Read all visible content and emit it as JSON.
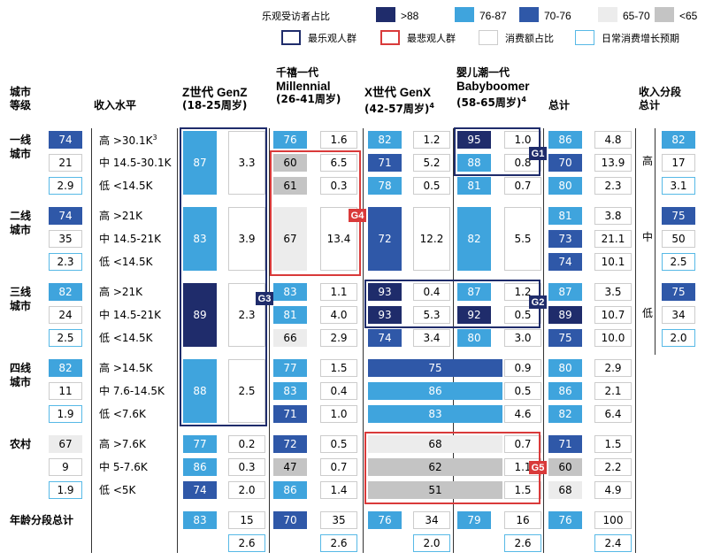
{
  "legend": {
    "color_title": "乐观受访者占比",
    "colors": [
      {
        "label": ">88",
        "color": "#1f2c6b"
      },
      {
        "label": "76-87",
        "color": "#3fa4dd"
      },
      {
        "label": "70-76",
        "color": "#2f58a8"
      },
      {
        "label": "65-70",
        "color": "#ececec"
      },
      {
        "label": "<65",
        "color": "#c4c4c4"
      }
    ],
    "outlines": [
      {
        "label": "最乐观人群",
        "color": "#1f2c6b",
        "style": "bold"
      },
      {
        "label": "最悲观人群",
        "color": "#d93a3a",
        "style": "bold"
      },
      {
        "label": "消费额占比",
        "color": "#cccccc",
        "style": "thin"
      },
      {
        "label": "日常消费增长预期",
        "color": "#57b9e6",
        "style": "thin"
      }
    ]
  },
  "headers": {
    "city_tier": "城市\n等级",
    "income": "收入水平",
    "genz_cn": "Z世代 GenZ",
    "genz_age": "(18-25周岁)",
    "mil_cn": "千禧一代",
    "mil_en": "Millennial",
    "mil_age": "(26-41周岁)",
    "genx_cn": "X世代 GenX",
    "genx_age": "(42-57周岁)",
    "genx_sup": "4",
    "boom_cn": "婴儿潮一代",
    "boom_en": "Babyboomer",
    "boom_age": "(58-65周岁)",
    "boom_sup": "4",
    "total": "总计",
    "income_total": "收入分段\n总计"
  },
  "chart_data": {
    "type": "table",
    "tiers": [
      {
        "name": "一线\n城市",
        "rows": [
          {
            "share": "74",
            "income": "高 >30.1K",
            "income_sup": "3",
            "tot": "86",
            "tot_w": "4.8"
          },
          {
            "share": "21",
            "income": "中 14.5-30.1K",
            "tot": "70",
            "tot_w": "13.9"
          },
          {
            "share": "2.9",
            "income": "低 <14.5K",
            "tot": "80",
            "tot_w": "2.3"
          }
        ],
        "genz": {
          "v": "87",
          "w": "3.3"
        },
        "mil": [
          {
            "v": "76",
            "w": "1.6"
          },
          {
            "v": "60",
            "w": "6.5"
          },
          {
            "v": "61",
            "w": "0.3"
          }
        ],
        "genx": [
          {
            "v": "82",
            "w": "1.2"
          },
          {
            "v": "71",
            "w": "5.2"
          },
          {
            "v": "78",
            "w": "0.5"
          }
        ],
        "boom": [
          {
            "v": "95",
            "w": "1.0"
          },
          {
            "v": "88",
            "w": "0.8"
          },
          {
            "v": "81",
            "w": "0.7"
          }
        ]
      },
      {
        "name": "二线\n城市",
        "rows": [
          {
            "share": "74",
            "income": "高 >21K",
            "tot": "81",
            "tot_w": "3.8"
          },
          {
            "share": "35",
            "income": "中 14.5-21K",
            "tot": "73",
            "tot_w": "21.1"
          },
          {
            "share": "2.3",
            "income": "低 <14.5K",
            "tot": "74",
            "tot_w": "10.1"
          }
        ],
        "genz": {
          "v": "83",
          "w": "3.9"
        },
        "mil": {
          "v": "67",
          "w": "13.4"
        },
        "genx": {
          "v": "72",
          "w": "12.2"
        },
        "boom": {
          "v": "82",
          "w": "5.5"
        }
      },
      {
        "name": "三线\n城市",
        "rows": [
          {
            "share": "82",
            "income": "高 >21K",
            "tot": "87",
            "tot_w": "3.5"
          },
          {
            "share": "24",
            "income": "中 14.5-21K",
            "tot": "89",
            "tot_w": "10.7"
          },
          {
            "share": "2.5",
            "income": "低 <14.5K",
            "tot": "75",
            "tot_w": "10.0"
          }
        ],
        "genz": {
          "v": "89",
          "w": "2.3"
        },
        "mil": [
          {
            "v": "83",
            "w": "1.1"
          },
          {
            "v": "81",
            "w": "4.0"
          },
          {
            "v": "66",
            "w": "2.9"
          }
        ],
        "genx": [
          {
            "v": "93",
            "w": "0.4"
          },
          {
            "v": "93",
            "w": "5.3"
          },
          {
            "v": "74",
            "w": "3.4"
          }
        ],
        "boom": [
          {
            "v": "87",
            "w": "1.2"
          },
          {
            "v": "92",
            "w": "0.5"
          },
          {
            "v": "80",
            "w": "3.0"
          }
        ]
      },
      {
        "name": "四线\n城市",
        "rows": [
          {
            "share": "82",
            "income": "高 >14.5K",
            "tot": "80",
            "tot_w": "2.9"
          },
          {
            "share": "11",
            "income": "中 7.6-14.5K",
            "tot": "86",
            "tot_w": "2.1"
          },
          {
            "share": "1.9",
            "income": "低 <7.6K",
            "tot": "82",
            "tot_w": "6.4"
          }
        ],
        "genz": {
          "v": "88",
          "w": "2.5"
        },
        "mil": [
          {
            "v": "77",
            "w": "1.5"
          },
          {
            "v": "83",
            "w": "0.4"
          },
          {
            "v": "71",
            "w": "1.0"
          }
        ],
        "genxboom": [
          {
            "v": "75",
            "w": "0.9"
          },
          {
            "v": "86",
            "w": "0.5"
          },
          {
            "v": "83",
            "w": "4.6"
          }
        ]
      },
      {
        "name": "农村",
        "rows": [
          {
            "share": "67",
            "income": "高 >7.6K",
            "tot": "71",
            "tot_w": "1.5"
          },
          {
            "share": "9",
            "income": "中 5-7.6K",
            "tot": "60",
            "tot_w": "2.2"
          },
          {
            "share": "1.9",
            "income": "低 <5K",
            "tot": "68",
            "tot_w": "4.9"
          }
        ],
        "genz": [
          {
            "v": "77",
            "w": "0.2"
          },
          {
            "v": "86",
            "w": "0.3"
          },
          {
            "v": "74",
            "w": "2.0"
          }
        ],
        "mil": [
          {
            "v": "72",
            "w": "0.5"
          },
          {
            "v": "47",
            "w": "0.7"
          },
          {
            "v": "86",
            "w": "1.4"
          }
        ],
        "genxboom": [
          {
            "v": "68",
            "w": "0.7"
          },
          {
            "v": "62",
            "w": "1.1"
          },
          {
            "v": "51",
            "w": "1.5"
          }
        ]
      }
    ],
    "age_total": {
      "label": "年龄分段总计",
      "genz": {
        "v": "83",
        "w": "15",
        "g": "2.6"
      },
      "mil": {
        "v": "70",
        "w": "35",
        "g": "2.6"
      },
      "genx": {
        "v": "76",
        "w": "34",
        "g": "2.0"
      },
      "boom": {
        "v": "79",
        "w": "16",
        "g": "2.6"
      },
      "tot": {
        "v": "76",
        "w": "100",
        "g": "2.4"
      }
    },
    "income_totals": [
      {
        "label": "高",
        "v": "82",
        "w": "17",
        "g": "3.1"
      },
      {
        "label": "中",
        "v": "75",
        "w": "50",
        "g": "2.5"
      },
      {
        "label": "低",
        "v": "75",
        "w": "34",
        "g": "2.0"
      }
    ],
    "groups": [
      {
        "tag": "G1",
        "type": "optimistic"
      },
      {
        "tag": "G2",
        "type": "optimistic"
      },
      {
        "tag": "G3",
        "type": "optimistic"
      },
      {
        "tag": "G4",
        "type": "pessimistic"
      },
      {
        "tag": "G5",
        "type": "pessimistic"
      }
    ]
  }
}
